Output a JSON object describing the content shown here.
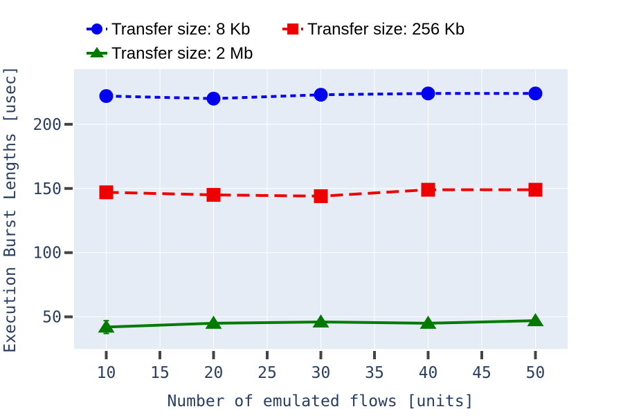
{
  "chart_data": {
    "type": "line",
    "xlabel": "Number of emulated flows [units]",
    "ylabel": "Execution Burst Lengths [usec]",
    "x": [
      10,
      20,
      30,
      40,
      50
    ],
    "xlim": [
      7,
      53
    ],
    "ylim": [
      25,
      243
    ],
    "xticks": [
      10,
      15,
      20,
      25,
      30,
      35,
      40,
      45,
      50
    ],
    "yticks": [
      50,
      100,
      150,
      200
    ],
    "grid": true,
    "legend_position": "top-left",
    "series": [
      {
        "name": "Transfer size: 8 Kb",
        "color": "#0000ee",
        "marker": "circle",
        "dash": "dotted",
        "values": [
          222,
          220,
          223,
          224,
          224
        ],
        "errors": [
          0,
          0,
          0,
          0,
          0
        ]
      },
      {
        "name": "Transfer size: 256 Kb",
        "color": "#ee0000",
        "marker": "square",
        "dash": "dashed",
        "values": [
          147,
          145,
          144,
          149,
          149
        ],
        "errors": [
          0,
          0,
          3,
          0,
          0
        ]
      },
      {
        "name": "Transfer size: 2 Mb",
        "color": "#007a00",
        "marker": "triangle",
        "dash": "solid",
        "values": [
          42,
          45,
          46,
          45,
          47
        ],
        "errors": [
          5,
          0,
          0,
          0,
          0
        ]
      }
    ]
  }
}
